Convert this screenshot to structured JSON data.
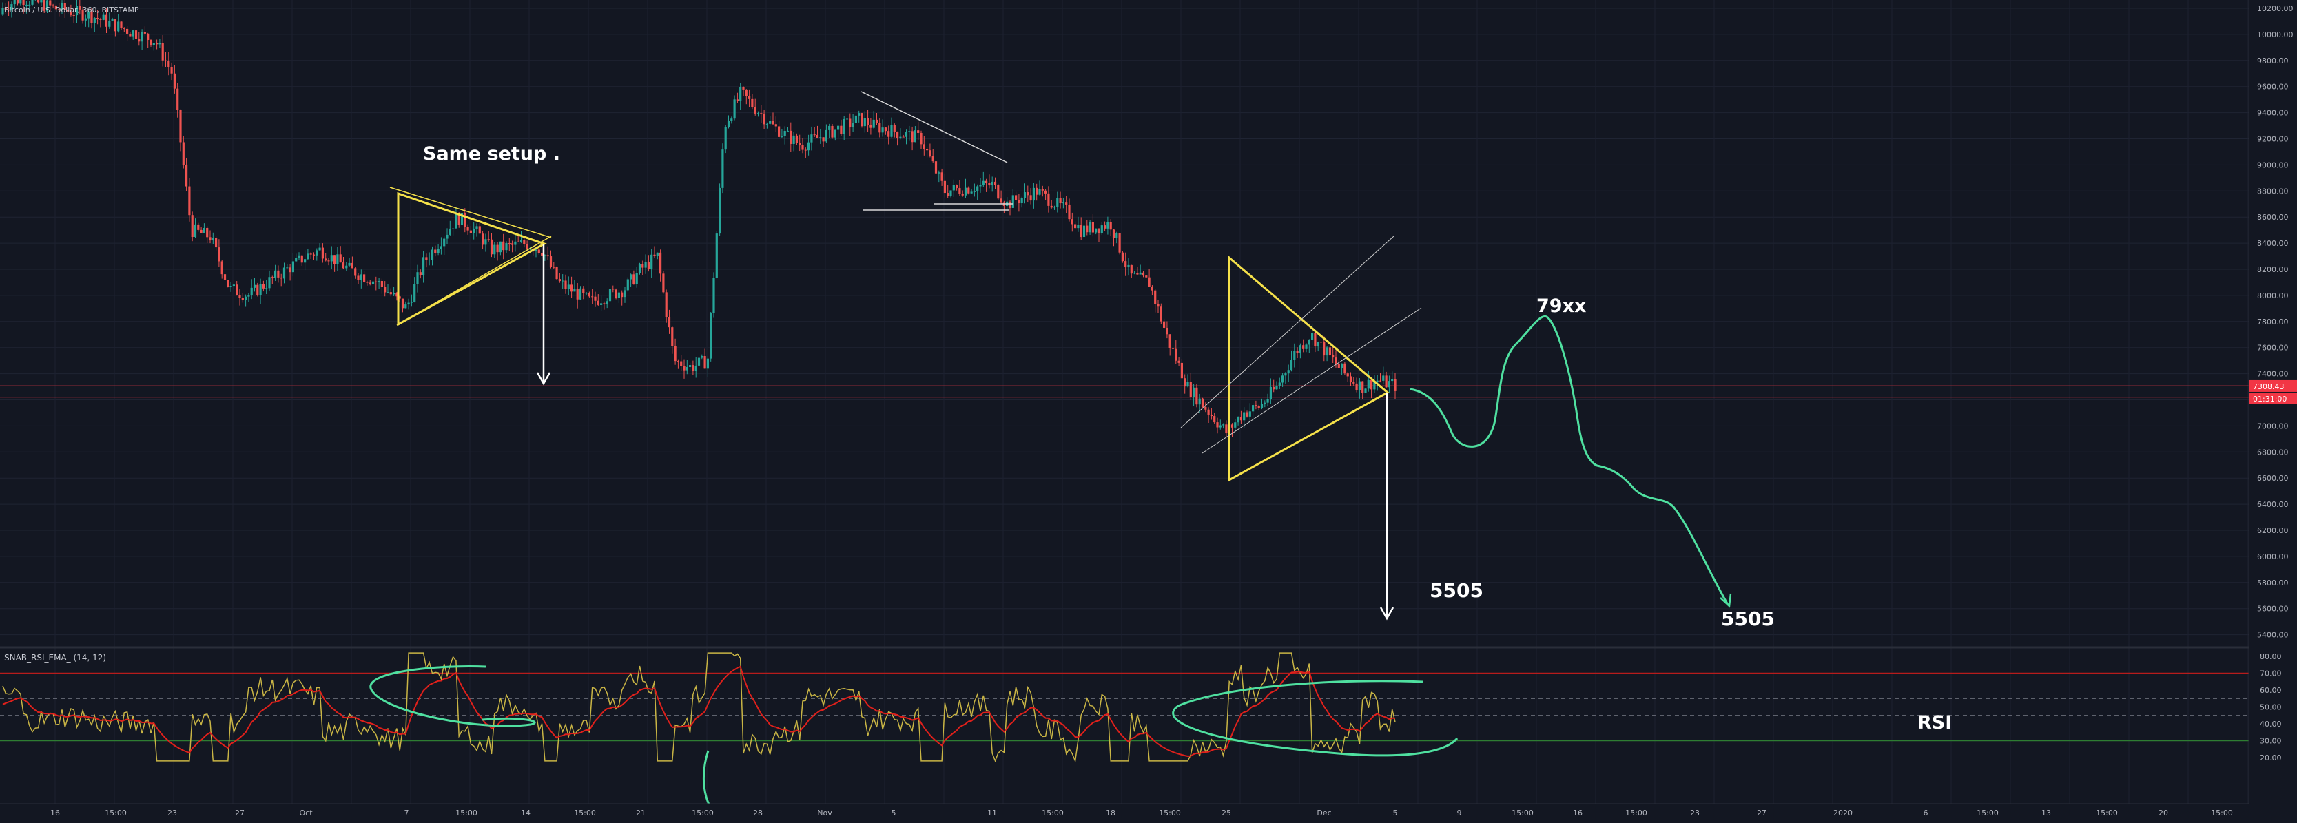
{
  "header": {
    "symbol_title": "Bitcoin / U.S. Dollar, 360, BITSTAMP"
  },
  "price_axis": {
    "ticks": [
      "10200.00",
      "10000.00",
      "9800.00",
      "9600.00",
      "9400.00",
      "9200.00",
      "9000.00",
      "8800.00",
      "8600.00",
      "8400.00",
      "8200.00",
      "8000.00",
      "7800.00",
      "7600.00",
      "7400.00",
      "7200.00",
      "7000.00",
      "6800.00",
      "6600.00",
      "6400.00",
      "6200.00",
      "6000.00",
      "5800.00",
      "5600.00",
      "5400.00"
    ],
    "last_price": "7308.43",
    "countdown": "01:31:00"
  },
  "rsi_axis": {
    "ticks": [
      "80.00",
      "70.00",
      "60.00",
      "50.00",
      "40.00",
      "30.00",
      "20.00"
    ]
  },
  "rsi_panel": {
    "title": "SNAB_RSI_EMA_ (14, 12)",
    "label": "RSI"
  },
  "time_axis": {
    "labels": [
      "16",
      "15:00",
      "23",
      "27",
      "Oct",
      "7",
      "15:00",
      "14",
      "15:00",
      "21",
      "15:00",
      "28",
      "Nov",
      "5",
      "11",
      "15:00",
      "18",
      "15:00",
      "25",
      "Dec",
      "5",
      "9",
      "15:00",
      "16",
      "15:00",
      "23",
      "27",
      "2020",
      "6",
      "15:00",
      "13",
      "15:00",
      "20",
      "15:00"
    ]
  },
  "annotations": {
    "same_setup": "Same setup .",
    "target_high": "79xx",
    "target_low_1": "5505",
    "target_low_2": "5505"
  },
  "colors": {
    "background": "#131722",
    "up": "#26a69a",
    "down": "#ef5350",
    "triangle": "#f5e14a",
    "projection": "#4fe0a0",
    "rsi_line": "#c9b545",
    "rsi_ema": "#e0201b",
    "price_tag": "#f23645"
  },
  "chart_data": {
    "type": "candlestick",
    "symbol": "Bitcoin / U.S. Dollar",
    "interval": "360",
    "exchange": "BITSTAMP",
    "ylim": [
      5300,
      10300
    ],
    "close_path": [
      {
        "x": "Sep 12",
        "y": 10150
      },
      {
        "x": "Sep 14",
        "y": 10280
      },
      {
        "x": "Sep 16",
        "y": 10200
      },
      {
        "x": "Sep 18",
        "y": 10150
      },
      {
        "x": "Sep 20",
        "y": 10050
      },
      {
        "x": "Sep 22",
        "y": 9950
      },
      {
        "x": "Sep 23",
        "y": 9700
      },
      {
        "x": "Sep 24",
        "y": 8500
      },
      {
        "x": "Sep 25",
        "y": 8450
      },
      {
        "x": "Sep 26",
        "y": 8050
      },
      {
        "x": "Sep 27",
        "y": 8000
      },
      {
        "x": "Sep 29",
        "y": 8200
      },
      {
        "x": "Sep 30",
        "y": 8300
      },
      {
        "x": "Oct 1",
        "y": 8350
      },
      {
        "x": "Oct 3",
        "y": 8200
      },
      {
        "x": "Oct 5",
        "y": 8100
      },
      {
        "x": "Oct 7",
        "y": 7900
      },
      {
        "x": "Oct 8",
        "y": 8250
      },
      {
        "x": "Oct 10",
        "y": 8600
      },
      {
        "x": "Oct 11",
        "y": 8500
      },
      {
        "x": "Oct 12",
        "y": 8350
      },
      {
        "x": "Oct 14",
        "y": 8400
      },
      {
        "x": "Oct 15",
        "y": 8350
      },
      {
        "x": "Oct 16",
        "y": 8100
      },
      {
        "x": "Oct 18",
        "y": 7950
      },
      {
        "x": "Oct 20",
        "y": 8050
      },
      {
        "x": "Oct 21",
        "y": 8200
      },
      {
        "x": "Oct 22",
        "y": 8300
      },
      {
        "x": "Oct 23",
        "y": 7500
      },
      {
        "x": "Oct 24",
        "y": 7450
      },
      {
        "x": "Oct 25",
        "y": 7500
      },
      {
        "x": "Oct 26",
        "y": 9300
      },
      {
        "x": "Oct 27",
        "y": 9550
      },
      {
        "x": "Oct 29",
        "y": 9300
      },
      {
        "x": "Oct 31",
        "y": 9150
      },
      {
        "x": "Nov 2",
        "y": 9250
      },
      {
        "x": "Nov 4",
        "y": 9350
      },
      {
        "x": "Nov 5",
        "y": 9300
      },
      {
        "x": "Nov 7",
        "y": 9200
      },
      {
        "x": "Nov 8",
        "y": 8800
      },
      {
        "x": "Nov 10",
        "y": 8850
      },
      {
        "x": "Nov 11",
        "y": 8700
      },
      {
        "x": "Nov 12",
        "y": 8750
      },
      {
        "x": "Nov 13",
        "y": 8800
      },
      {
        "x": "Nov 15",
        "y": 8650
      },
      {
        "x": "Nov 16",
        "y": 8500
      },
      {
        "x": "Nov 18",
        "y": 8550
      },
      {
        "x": "Nov 19",
        "y": 8150
      },
      {
        "x": "Nov 20",
        "y": 8100
      },
      {
        "x": "Nov 21",
        "y": 7650
      },
      {
        "x": "Nov 22",
        "y": 7300
      },
      {
        "x": "Nov 24",
        "y": 6950
      },
      {
        "x": "Nov 25",
        "y": 7100
      },
      {
        "x": "Nov 26",
        "y": 7150
      },
      {
        "x": "Nov 27",
        "y": 7300
      },
      {
        "x": "Nov 28",
        "y": 7550
      },
      {
        "x": "Nov 29",
        "y": 7700
      },
      {
        "x": "Nov 30",
        "y": 7550
      },
      {
        "x": "Dec 1",
        "y": 7400
      },
      {
        "x": "Dec 2",
        "y": 7300
      },
      {
        "x": "Dec 3",
        "y": 7350
      },
      {
        "x": "Dec 4",
        "y": 7308
      }
    ],
    "projection": [
      {
        "x": "Dec 5",
        "y": 7300
      },
      {
        "x": "Dec 7",
        "y": 6900
      },
      {
        "x": "Dec 9",
        "y": 7200
      },
      {
        "x": "Dec 12",
        "y": 7850
      },
      {
        "x": "Dec 14",
        "y": 6650
      },
      {
        "x": "Dec 16",
        "y": 6400
      },
      {
        "x": "Dec 19",
        "y": 6200
      },
      {
        "x": "Dec 23",
        "y": 5550
      }
    ],
    "rsi": {
      "name": "SNAB_RSI_EMA_",
      "params": [
        14,
        12
      ],
      "ylim": [
        15,
        85
      ],
      "levels": [
        70,
        30
      ],
      "dashed_levels": [
        55,
        45
      ]
    }
  }
}
